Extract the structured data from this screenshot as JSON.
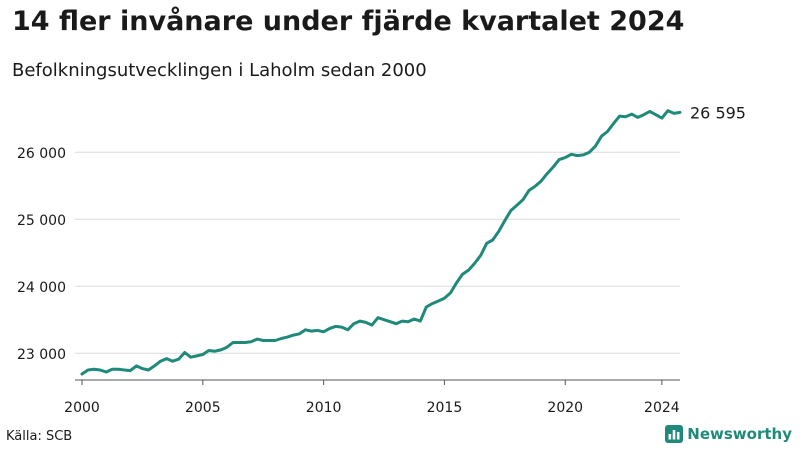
{
  "header": {
    "title": "14 fler invånare under fjärde kvartalet 2024",
    "subtitle": "Befolkningsutvecklingen i Laholm sedan 2000"
  },
  "footer": {
    "source": "Källa: SCB",
    "brand": "Newsworthy",
    "brand_icon": "bar-chart-icon",
    "brand_color": "#1f8a7a"
  },
  "chart_data": {
    "type": "line",
    "title": "14 fler invånare under fjärde kvartalet 2024",
    "subtitle": "Befolkningsutvecklingen i Laholm sedan 2000",
    "xlabel": "",
    "ylabel": "",
    "x_range": [
      2000,
      2024.75
    ],
    "ylim": [
      22600,
      26780
    ],
    "x_ticks": [
      2000,
      2005,
      2010,
      2015,
      2020,
      2024
    ],
    "x_tick_labels": [
      "2000",
      "2005",
      "2010",
      "2015",
      "2020",
      "2024"
    ],
    "y_ticks": [
      23000,
      24000,
      25000,
      26000
    ],
    "y_tick_labels": [
      "23 000",
      "24 000",
      "25 000",
      "26 000"
    ],
    "grid": "horizontal",
    "legend": "none",
    "line_color": "#1f8a7a",
    "end_label": "26 595",
    "series": [
      {
        "x": [
          2000.0,
          2000.25,
          2000.5,
          2000.75,
          2001.0,
          2001.25,
          2001.5,
          2001.75,
          2002.0,
          2002.25,
          2002.5,
          2002.75,
          2003.0,
          2003.25,
          2003.5,
          2003.75,
          2004.0,
          2004.25,
          2004.5,
          2004.75,
          2005.0,
          2005.25,
          2005.5,
          2005.75,
          2006.0,
          2006.25,
          2006.5,
          2006.75,
          2007.0,
          2007.25,
          2007.5,
          2007.75,
          2008.0,
          2008.25,
          2008.5,
          2008.75,
          2009.0,
          2009.25,
          2009.5,
          2009.75,
          2010.0,
          2010.25,
          2010.5,
          2010.75,
          2011.0,
          2011.25,
          2011.5,
          2011.75,
          2012.0,
          2012.25,
          2012.5,
          2012.75,
          2013.0,
          2013.25,
          2013.5,
          2013.75,
          2014.0,
          2014.25,
          2014.5,
          2014.75,
          2015.0,
          2015.25,
          2015.5,
          2015.75,
          2016.0,
          2016.25,
          2016.5,
          2016.75,
          2017.0,
          2017.25,
          2017.5,
          2017.75,
          2018.0,
          2018.25,
          2018.5,
          2018.75,
          2019.0,
          2019.25,
          2019.5,
          2019.75,
          2020.0,
          2020.25,
          2020.5,
          2020.75,
          2021.0,
          2021.25,
          2021.5,
          2021.75,
          2022.0,
          2022.25,
          2022.5,
          2022.75,
          2023.0,
          2023.25,
          2023.5,
          2023.75,
          2024.0,
          2024.25,
          2024.5,
          2024.75
        ],
        "values": [
          22690,
          22750,
          22760,
          22750,
          22720,
          22760,
          22760,
          22750,
          22740,
          22810,
          22770,
          22750,
          22810,
          22880,
          22920,
          22880,
          22910,
          23010,
          22940,
          22960,
          22980,
          23040,
          23030,
          23050,
          23090,
          23160,
          23160,
          23160,
          23170,
          23210,
          23190,
          23190,
          23190,
          23220,
          23240,
          23270,
          23290,
          23350,
          23330,
          23340,
          23320,
          23370,
          23400,
          23390,
          23350,
          23440,
          23480,
          23460,
          23420,
          23530,
          23500,
          23470,
          23440,
          23480,
          23470,
          23510,
          23480,
          23690,
          23740,
          23780,
          23820,
          23900,
          24050,
          24180,
          24240,
          24340,
          24460,
          24640,
          24690,
          24820,
          24980,
          25130,
          25210,
          25290,
          25430,
          25490,
          25570,
          25680,
          25780,
          25890,
          25920,
          25970,
          25950,
          25960,
          26000,
          26090,
          26240,
          26310,
          26430,
          26540,
          26530,
          26570,
          26520,
          26560,
          26610,
          26560,
          26510,
          26620,
          26580,
          26595
        ]
      }
    ]
  }
}
